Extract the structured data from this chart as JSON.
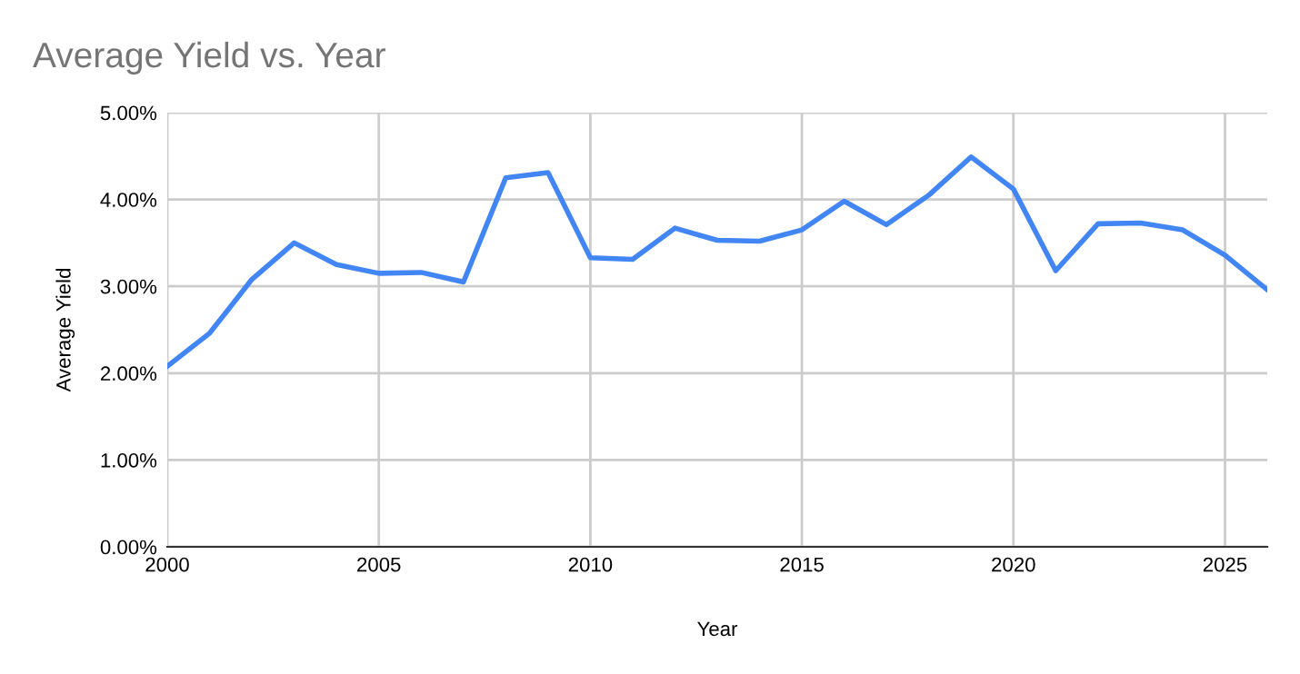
{
  "chart_data": {
    "type": "line",
    "title": "Average Yield vs. Year",
    "xlabel": "Year",
    "ylabel": "Average Yield",
    "x": [
      2000,
      2001,
      2002,
      2003,
      2004,
      2005,
      2006,
      2007,
      2008,
      2009,
      2010,
      2011,
      2012,
      2013,
      2014,
      2015,
      2016,
      2017,
      2018,
      2019,
      2020,
      2021,
      2022,
      2023,
      2024,
      2025,
      2026
    ],
    "series": [
      {
        "color": "#4285f4",
        "values": [
          2.08,
          2.46,
          3.08,
          3.5,
          3.25,
          3.15,
          3.16,
          3.05,
          4.25,
          4.31,
          3.33,
          3.31,
          3.67,
          3.53,
          3.52,
          3.65,
          3.98,
          3.71,
          4.05,
          4.49,
          4.12,
          3.18,
          3.72,
          3.73,
          3.65,
          3.36,
          2.96
        ]
      }
    ],
    "xlim": [
      2000,
      2026
    ],
    "xticks": [
      2000,
      2005,
      2010,
      2015,
      2020,
      2025
    ],
    "ylim": [
      0,
      5
    ],
    "yticks": [
      {
        "value": 0,
        "label": "0.00%"
      },
      {
        "value": 1,
        "label": "1.00%"
      },
      {
        "value": 2,
        "label": "2.00%"
      },
      {
        "value": 3,
        "label": "3.00%"
      },
      {
        "value": 4,
        "label": "4.00%"
      },
      {
        "value": 5,
        "label": "5.00%"
      }
    ],
    "grid": true,
    "legend": false,
    "marker": "none",
    "line_style": "solid"
  }
}
